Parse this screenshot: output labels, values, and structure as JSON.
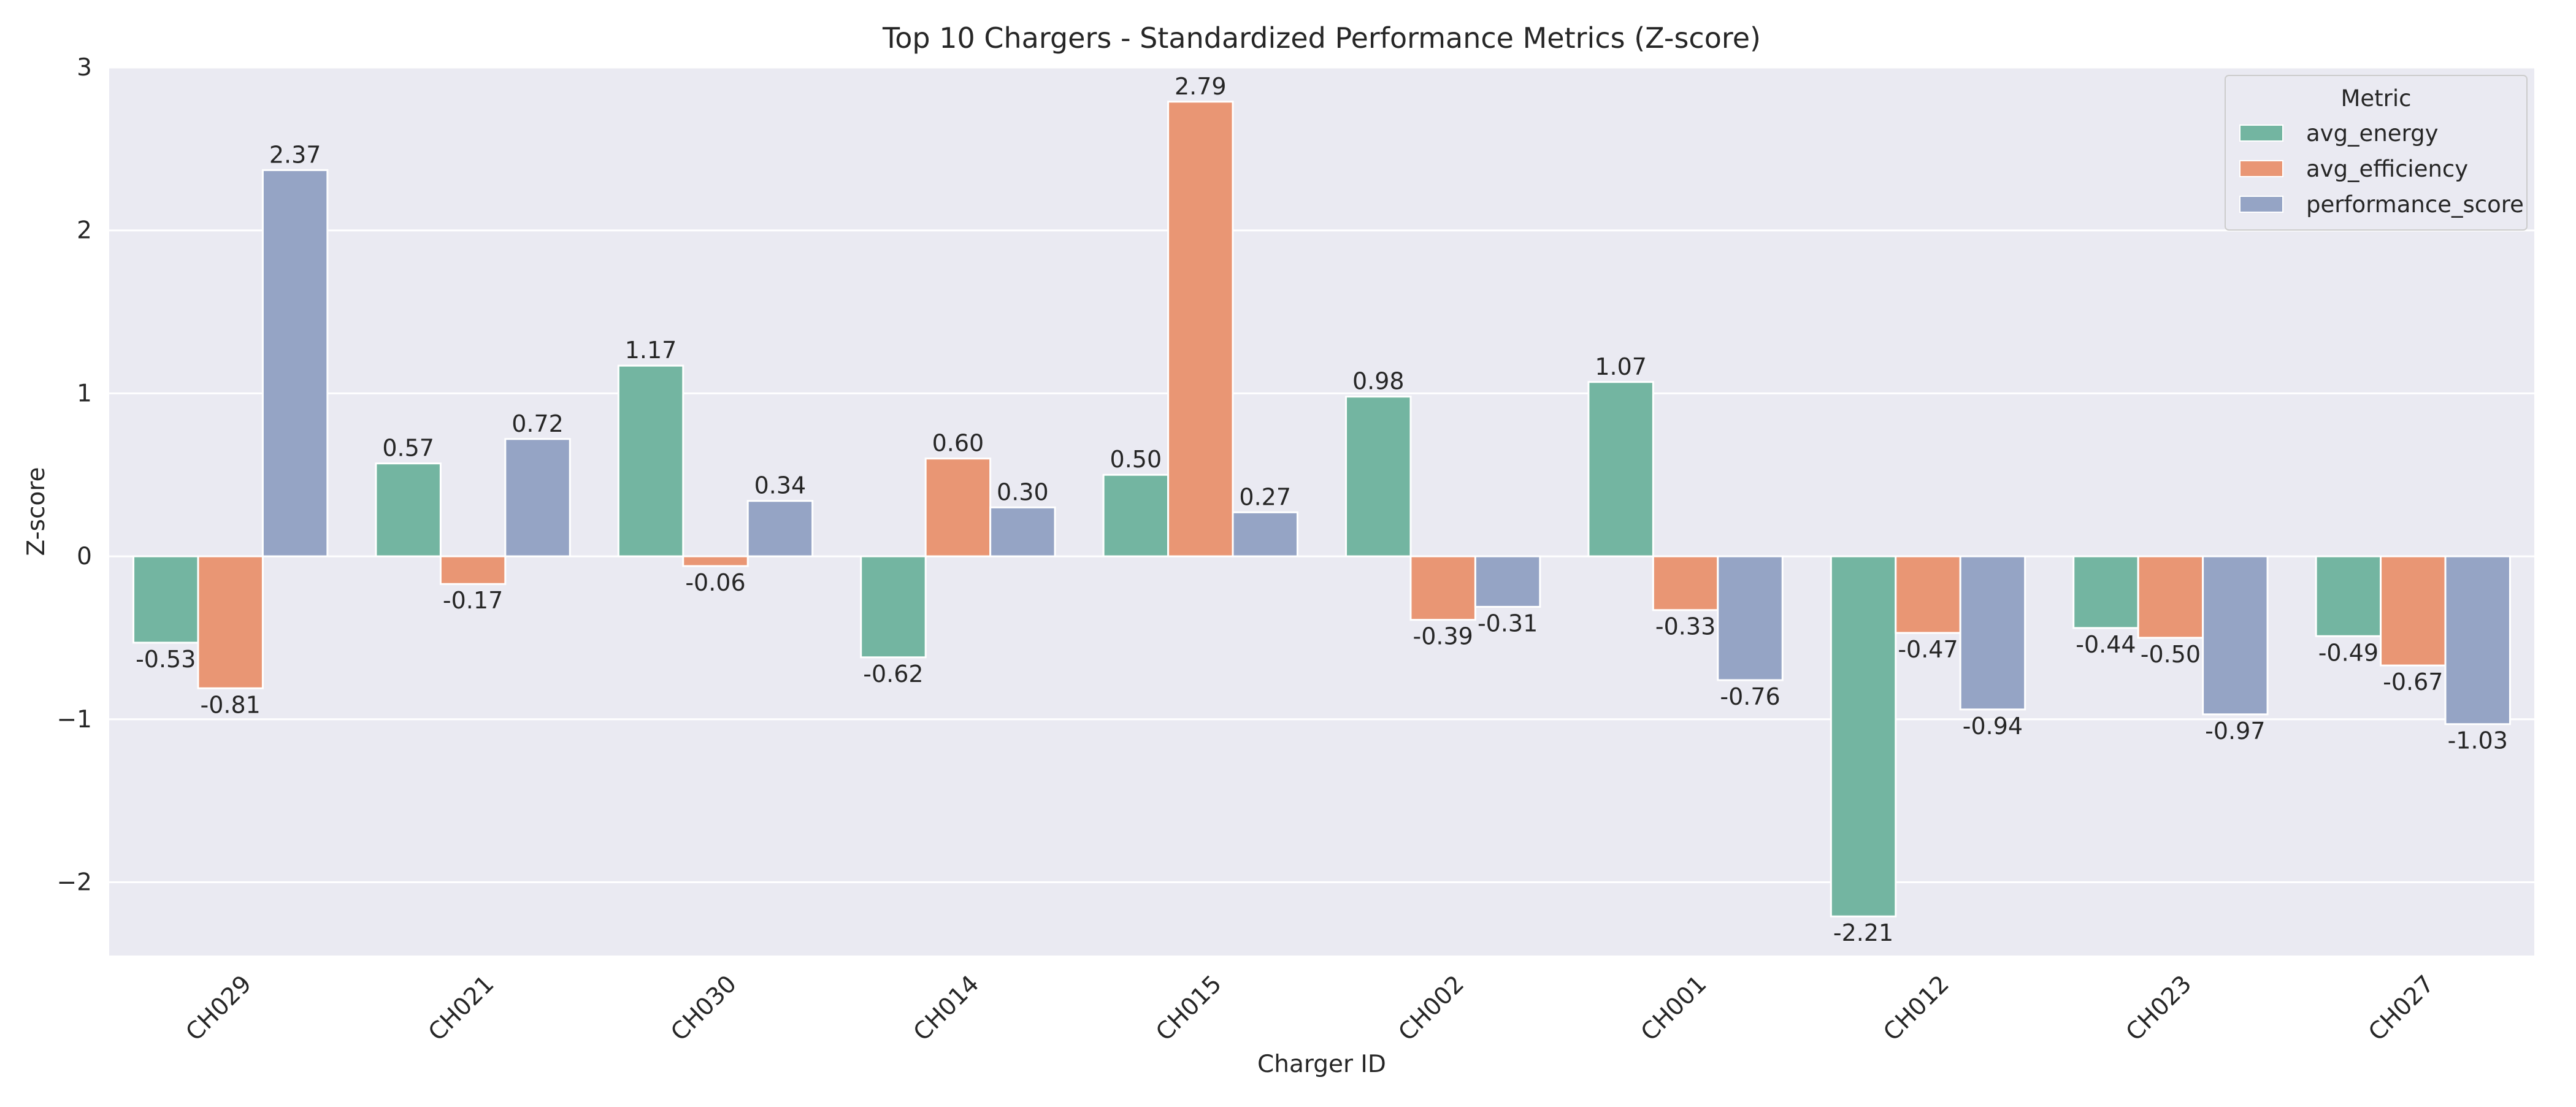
{
  "chart_data": {
    "type": "bar",
    "title": "Top 10 Chargers - Standardized Performance Metrics (Z-score)",
    "xlabel": "Charger ID",
    "ylabel": "Z-score",
    "categories": [
      "CH029",
      "CH021",
      "CH030",
      "CH014",
      "CH015",
      "CH002",
      "CH001",
      "CH012",
      "CH023",
      "CH027"
    ],
    "series": [
      {
        "name": "avg_energy",
        "color": "#73b5a1",
        "values": [
          -0.53,
          0.57,
          1.17,
          -0.62,
          0.5,
          0.98,
          1.07,
          -2.21,
          -0.44,
          -0.49
        ],
        "labels": [
          "-0.53",
          "0.57",
          "1.17",
          "-0.62",
          "0.50",
          "0.98",
          "1.07",
          "-2.21",
          "-0.44",
          "-0.49"
        ]
      },
      {
        "name": "avg_efficiency",
        "color": "#e99674",
        "values": [
          -0.81,
          -0.17,
          -0.06,
          0.6,
          2.79,
          -0.39,
          -0.33,
          -0.47,
          -0.5,
          -0.67
        ],
        "labels": [
          "-0.81",
          "-0.17",
          "-0.06",
          "0.60",
          "2.79",
          "-0.39",
          "-0.33",
          "-0.47",
          "-0.50",
          "-0.67"
        ]
      },
      {
        "name": "performance_score",
        "color": "#95a4c5",
        "values": [
          2.37,
          0.72,
          0.34,
          0.3,
          0.27,
          -0.31,
          -0.76,
          -0.94,
          -0.97,
          -1.03
        ],
        "labels": [
          "2.37",
          "0.72",
          "0.34",
          "0.30",
          "0.27",
          "-0.31",
          "-0.76",
          "-0.94",
          "-0.97",
          "-1.03"
        ]
      }
    ],
    "ylim": [
      -2.45,
      3.0
    ],
    "yticks": [
      -2,
      -1,
      0,
      1,
      2,
      3
    ],
    "ytick_labels": [
      "−2",
      "−1",
      "0",
      "1",
      "2",
      "3"
    ],
    "grid": true,
    "legend": {
      "title": "Metric",
      "placement": "top-right"
    },
    "background_color": "#eaeaf2",
    "grid_color": "#ffffff"
  }
}
